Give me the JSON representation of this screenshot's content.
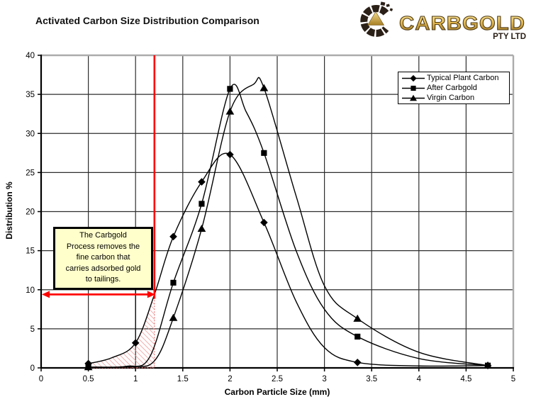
{
  "title": "Activated Carbon Size Distribution Comparison",
  "logo": {
    "name": "CARBGOLD",
    "subtitle": "PTY LTD",
    "gold_light": "#f7e49a",
    "gold_mid": "#dcae45",
    "gold_dark": "#8f6a1d",
    "dark_brown": "#2b2017"
  },
  "annotation": {
    "lines": [
      "The Carbgold",
      "Process removes the",
      "fine carbon that",
      "carries adsorbed gold",
      "to tailings."
    ],
    "box_fill": "#ffffcc",
    "marker_x": 1.2,
    "marker_y": 9.4,
    "leader_x": 1.0,
    "arrow_color": "#ff0000",
    "hatch_color": "#ef9a9a",
    "hatch_edge_color": "#e06666",
    "hatch_x_range": [
      0.5,
      1.2
    ]
  },
  "chart_data": {
    "type": "line",
    "title": "Activated Carbon Size Distribution Comparison",
    "xlabel": "Carbon Particle Size (mm)",
    "ylabel": "Distribution %",
    "xlim": [
      0,
      5
    ],
    "ylim": [
      0,
      40
    ],
    "x_ticks": [
      0,
      0.5,
      1,
      1.5,
      2,
      2.5,
      3,
      3.5,
      4,
      4.5,
      5
    ],
    "y_ticks": [
      0,
      5,
      10,
      15,
      20,
      25,
      30,
      35,
      40
    ],
    "grid": true,
    "legend_position": "top-right",
    "line_color": "#000000",
    "grid_color": "#2e2e2e",
    "frame_color": "#ababab",
    "series": [
      {
        "name": "Typical Plant Carbon",
        "marker": "diamond",
        "color": "#000000",
        "points": [
          [
            0.5,
            0.55
          ],
          [
            1.0,
            3.2
          ],
          [
            1.4,
            16.8
          ],
          [
            1.7,
            23.8
          ],
          [
            2.0,
            27.3
          ],
          [
            2.36,
            18.6
          ],
          [
            3.35,
            0.7
          ],
          [
            4.73,
            0.3
          ]
        ],
        "curve": [
          [
            0.5,
            0.55
          ],
          [
            0.75,
            1.3
          ],
          [
            1.0,
            3.2
          ],
          [
            1.2,
            9.4
          ],
          [
            1.4,
            16.8
          ],
          [
            1.7,
            23.8
          ],
          [
            2.0,
            27.3
          ],
          [
            2.36,
            18.6
          ],
          [
            2.7,
            8.5
          ],
          [
            3.0,
            2.6
          ],
          [
            3.35,
            0.7
          ],
          [
            4.0,
            0.25
          ],
          [
            4.73,
            0.3
          ]
        ]
      },
      {
        "name": "After Carbgold",
        "marker": "square",
        "color": "#000000",
        "points": [
          [
            0.5,
            0.1
          ],
          [
            1.4,
            10.9
          ],
          [
            1.7,
            21.0
          ],
          [
            2.0,
            35.7
          ],
          [
            2.36,
            27.5
          ],
          [
            3.35,
            4.0
          ],
          [
            4.73,
            0.3
          ]
        ],
        "curve": [
          [
            0.5,
            0.1
          ],
          [
            0.9,
            0.2
          ],
          [
            1.15,
            1.4
          ],
          [
            1.4,
            10.9
          ],
          [
            1.7,
            21.0
          ],
          [
            2.0,
            35.7
          ],
          [
            2.17,
            32.8
          ],
          [
            2.36,
            27.5
          ],
          [
            2.7,
            15.0
          ],
          [
            3.0,
            7.5
          ],
          [
            3.35,
            4.0
          ],
          [
            4.0,
            1.2
          ],
          [
            4.73,
            0.3
          ]
        ]
      },
      {
        "name": "Virgin Carbon",
        "marker": "triangle",
        "color": "#000000",
        "points": [
          [
            0.5,
            0.1
          ],
          [
            1.4,
            6.4
          ],
          [
            1.7,
            17.8
          ],
          [
            2.0,
            32.8
          ],
          [
            2.36,
            35.8
          ],
          [
            3.35,
            6.3
          ],
          [
            4.73,
            0.3
          ]
        ],
        "curve": [
          [
            0.5,
            0.1
          ],
          [
            0.95,
            0.15
          ],
          [
            1.2,
            0.9
          ],
          [
            1.4,
            6.4
          ],
          [
            1.7,
            17.8
          ],
          [
            2.0,
            32.8
          ],
          [
            2.25,
            36.3
          ],
          [
            2.36,
            35.8
          ],
          [
            2.7,
            22.0
          ],
          [
            3.0,
            10.5
          ],
          [
            3.35,
            6.3
          ],
          [
            4.0,
            2.0
          ],
          [
            4.73,
            0.3
          ]
        ]
      }
    ]
  }
}
